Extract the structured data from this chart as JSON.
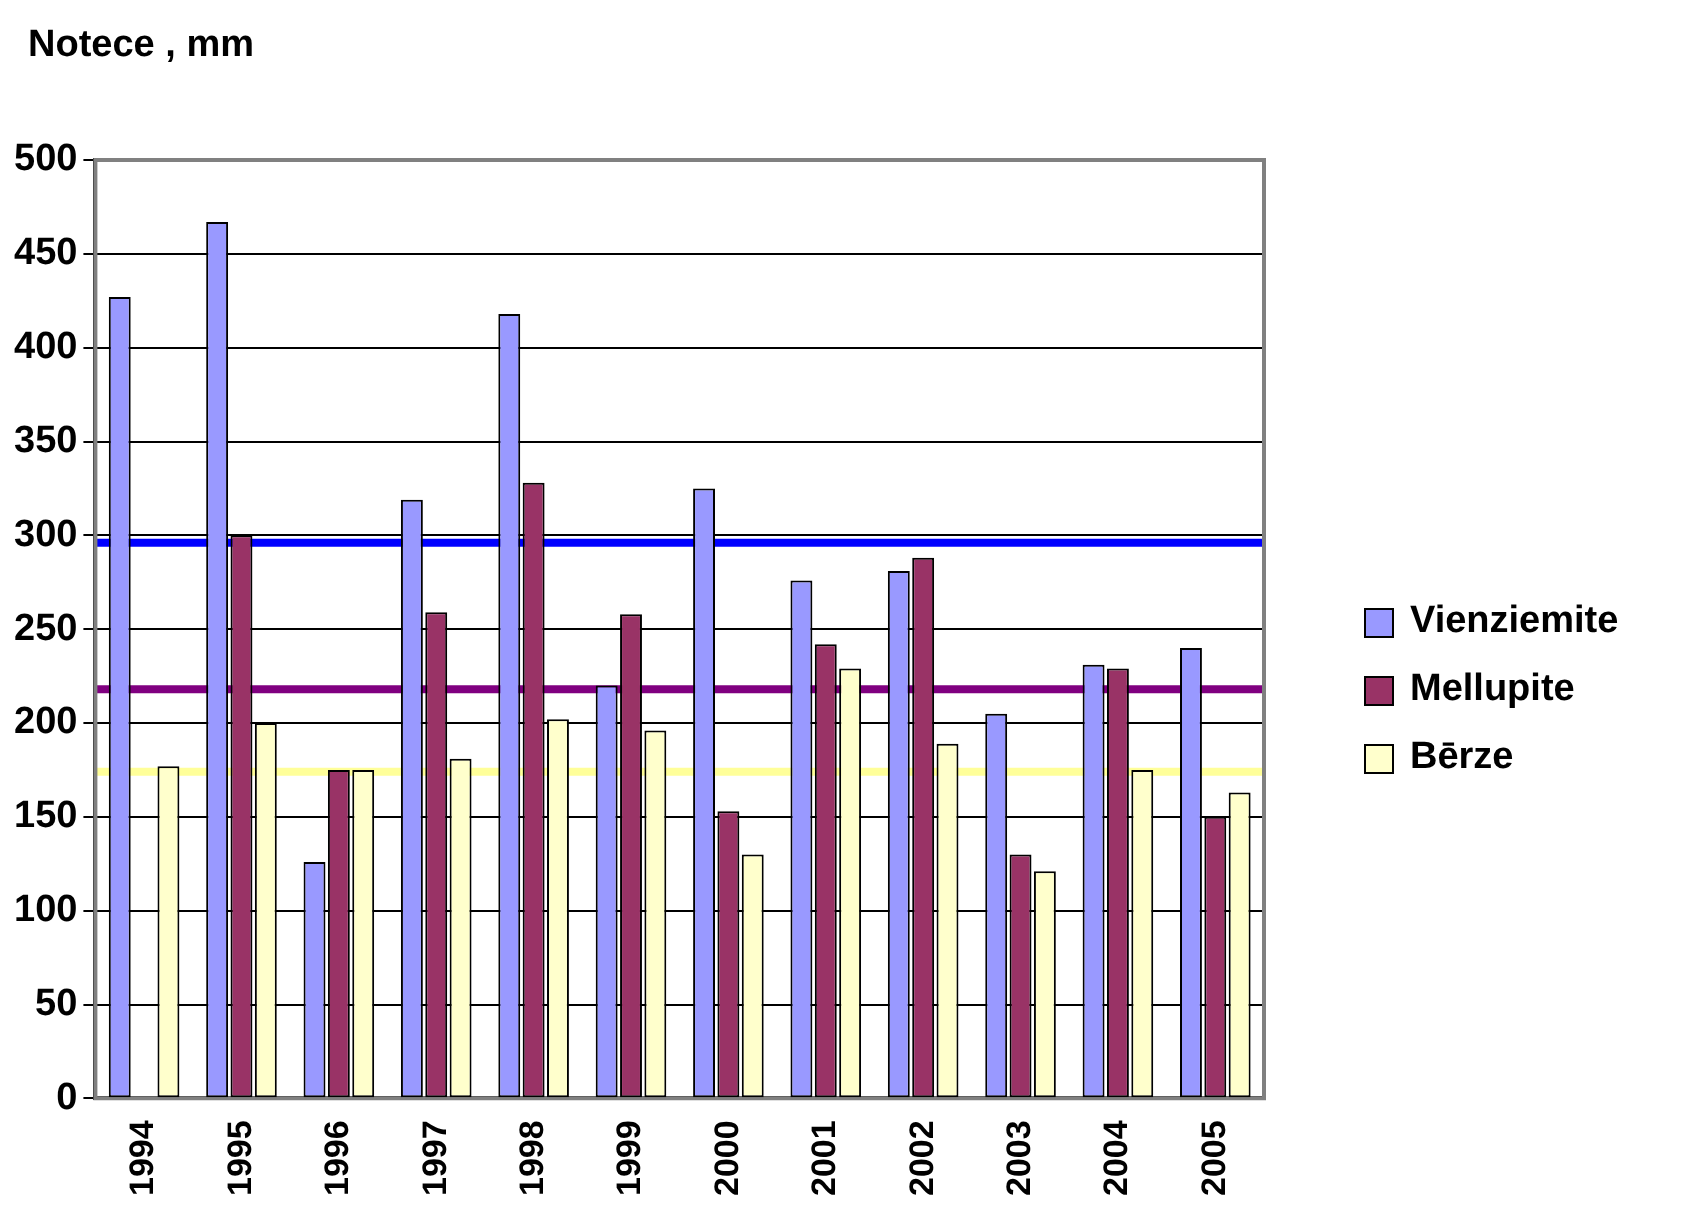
{
  "chart_data": {
    "type": "bar",
    "title": "Notece , mm",
    "categories": [
      "1994",
      "1995",
      "1996",
      "1997",
      "1998",
      "1999",
      "2000",
      "2001",
      "2002",
      "2003",
      "2004",
      "2005"
    ],
    "series": [
      {
        "name": "Vienziemite",
        "color": "#9999ff",
        "values": [
          427,
          467,
          126,
          319,
          418,
          220,
          325,
          276,
          281,
          205,
          231,
          240
        ]
      },
      {
        "name": "Mellupite",
        "color": "#993366",
        "values": [
          null,
          300,
          175,
          259,
          328,
          258,
          153,
          242,
          288,
          130,
          229,
          150
        ]
      },
      {
        "name": "Bērze",
        "color": "#ffffcc",
        "values": [
          177,
          200,
          175,
          181,
          202,
          196,
          130,
          229,
          189,
          121,
          175,
          163
        ]
      }
    ],
    "ylim": [
      0,
      500
    ],
    "yticks": [
      0,
      50,
      100,
      150,
      200,
      250,
      300,
      350,
      400,
      450,
      500
    ],
    "grid": "y",
    "legend": "right",
    "ref_lines": [
      {
        "axis": "y",
        "value": 296,
        "color": "#0000ff"
      },
      {
        "axis": "y",
        "value": 218,
        "color": "#800080"
      },
      {
        "axis": "y",
        "value": 174,
        "color": "#ffff99"
      }
    ]
  }
}
